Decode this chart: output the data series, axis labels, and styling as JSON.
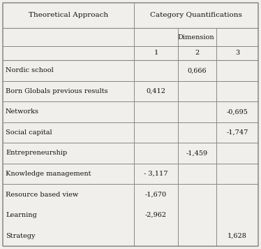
{
  "col_header_1": "Theoretical Approach",
  "col_header_2": "Category Quantifications",
  "sub_header": "Dimension",
  "dim_labels": [
    "1",
    "2",
    "3"
  ],
  "rows": [
    {
      "label": "Nordic school",
      "d1": "",
      "d2": "0,666",
      "d3": ""
    },
    {
      "label": "Born Globals previous results",
      "d1": "0,412",
      "d2": "",
      "d3": ""
    },
    {
      "label": "Networks",
      "d1": "",
      "d2": "",
      "d3": "-0,695"
    },
    {
      "label": "Social capital",
      "d1": "",
      "d2": "",
      "d3": "-1,747"
    },
    {
      "label": "Entrepreneurship",
      "d1": "",
      "d2": "-1,459",
      "d3": ""
    },
    {
      "label": "Knowledge management",
      "d1": "- 3,117",
      "d2": "",
      "d3": ""
    },
    {
      "label": "Resource based view",
      "d1": "-1,670",
      "d2": "",
      "d3": ""
    },
    {
      "label": "Learning",
      "d1": "-2,962",
      "d2": "",
      "d3": ""
    },
    {
      "label": "Strategy",
      "d1": "",
      "d2": "",
      "d3": "1,628"
    }
  ],
  "bg_color": "#f0efeb",
  "border_color": "#888888",
  "font_size": 7.0,
  "header_font_size": 7.5
}
